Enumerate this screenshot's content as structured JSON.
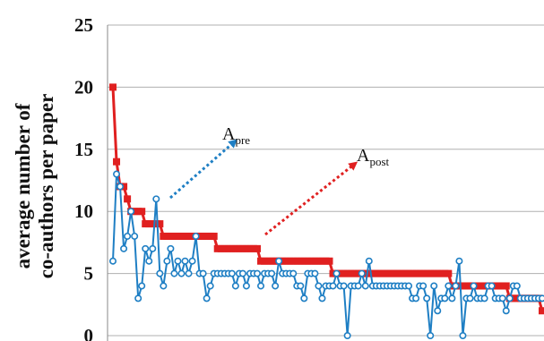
{
  "chart_data": {
    "type": "line",
    "title": "",
    "xlabel": "",
    "ylabel_lines": [
      "average number of",
      "co-authors per paper"
    ],
    "ylim": [
      0,
      25
    ],
    "yticks": [
      0,
      5,
      10,
      15,
      20,
      25
    ],
    "grid": "horizontal",
    "legend": "none",
    "series": [
      {
        "color": "#e02020",
        "marker": "square",
        "values": [
          20,
          14,
          12,
          12,
          11,
          10,
          10,
          10,
          10,
          9,
          9,
          9,
          9,
          9,
          8,
          8,
          8,
          8,
          8,
          8,
          8,
          8,
          8,
          8,
          8,
          8,
          8,
          8,
          8,
          7,
          7,
          7,
          7,
          7,
          7,
          7,
          7,
          7,
          7,
          7,
          7,
          6,
          6,
          6,
          6,
          6,
          6,
          6,
          6,
          6,
          6,
          6,
          6,
          6,
          6,
          6,
          6,
          6,
          6,
          6,
          6,
          5,
          5,
          5,
          5,
          5,
          5,
          5,
          5,
          5,
          5,
          5,
          5,
          5,
          5,
          5,
          5,
          5,
          5,
          5,
          5,
          5,
          5,
          5,
          5,
          5,
          5,
          5,
          5,
          5,
          5,
          5,
          5,
          5,
          4,
          4,
          4,
          4,
          4,
          4,
          4,
          4,
          4,
          4,
          4,
          4,
          4,
          4,
          4,
          4,
          3,
          3,
          3,
          3,
          3,
          3,
          3,
          3,
          3,
          2
        ]
      },
      {
        "color": "#1f7fc4",
        "marker": "circle",
        "values": [
          6,
          13,
          12,
          7,
          8,
          10,
          8,
          3,
          4,
          7,
          6,
          7,
          11,
          5,
          4,
          6,
          7,
          5,
          6,
          5,
          6,
          5,
          6,
          8,
          5,
          5,
          3,
          4,
          5,
          5,
          5,
          5,
          5,
          5,
          4,
          5,
          5,
          4,
          5,
          5,
          5,
          4,
          5,
          5,
          5,
          4,
          6,
          5,
          5,
          5,
          5,
          4,
          4,
          3,
          5,
          5,
          5,
          4,
          3,
          4,
          4,
          4,
          5,
          4,
          4,
          0,
          4,
          4,
          4,
          5,
          4,
          6,
          4,
          4,
          4,
          4,
          4,
          4,
          4,
          4,
          4,
          4,
          4,
          3,
          3,
          4,
          4,
          3,
          0,
          4,
          2,
          3,
          3,
          4,
          3,
          4,
          6,
          0,
          3,
          3,
          4,
          3,
          3,
          3,
          4,
          4,
          3,
          3,
          3,
          2,
          3,
          4,
          4,
          3,
          3,
          3,
          3,
          3,
          3,
          3
        ]
      }
    ],
    "annotations": [
      {
        "main": "A",
        "sub": "pre",
        "arrow_color": "#1f7fc4",
        "arrow_style": "dotted"
      },
      {
        "main": "A",
        "sub": "post",
        "arrow_color": "#e02020",
        "arrow_style": "dotted"
      }
    ]
  }
}
